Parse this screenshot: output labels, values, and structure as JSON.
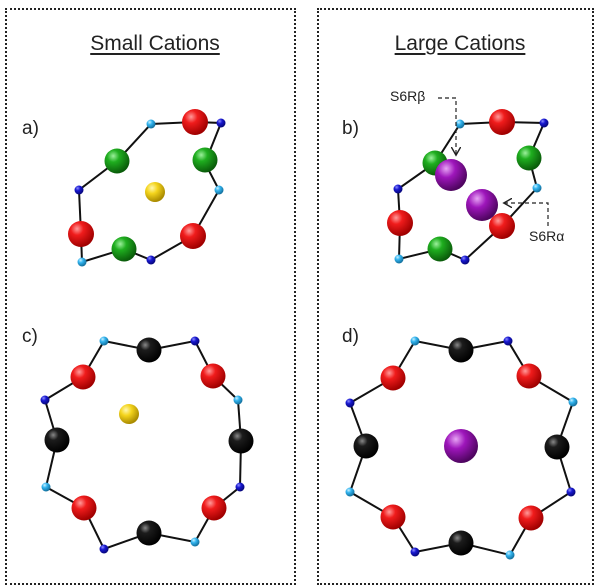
{
  "headings": {
    "left": "Small Cations",
    "right": "Large Cations"
  },
  "panel_labels": {
    "a": "a)",
    "b": "b)",
    "c": "c)",
    "d": "d)"
  },
  "callouts": {
    "beta": "S6Rβ",
    "alpha": "S6Rα"
  },
  "colors": {
    "red_atom": "#e8111a",
    "green_atom": "#1a9e1a",
    "black_atom": "#111111",
    "blue_node": "#1414c8",
    "cyan_node": "#2aa8e6",
    "small_cation": "#f2d21a",
    "large_cation": "#9a12b5",
    "bond": "#111111",
    "dashed_arrow": "#222222"
  }
}
